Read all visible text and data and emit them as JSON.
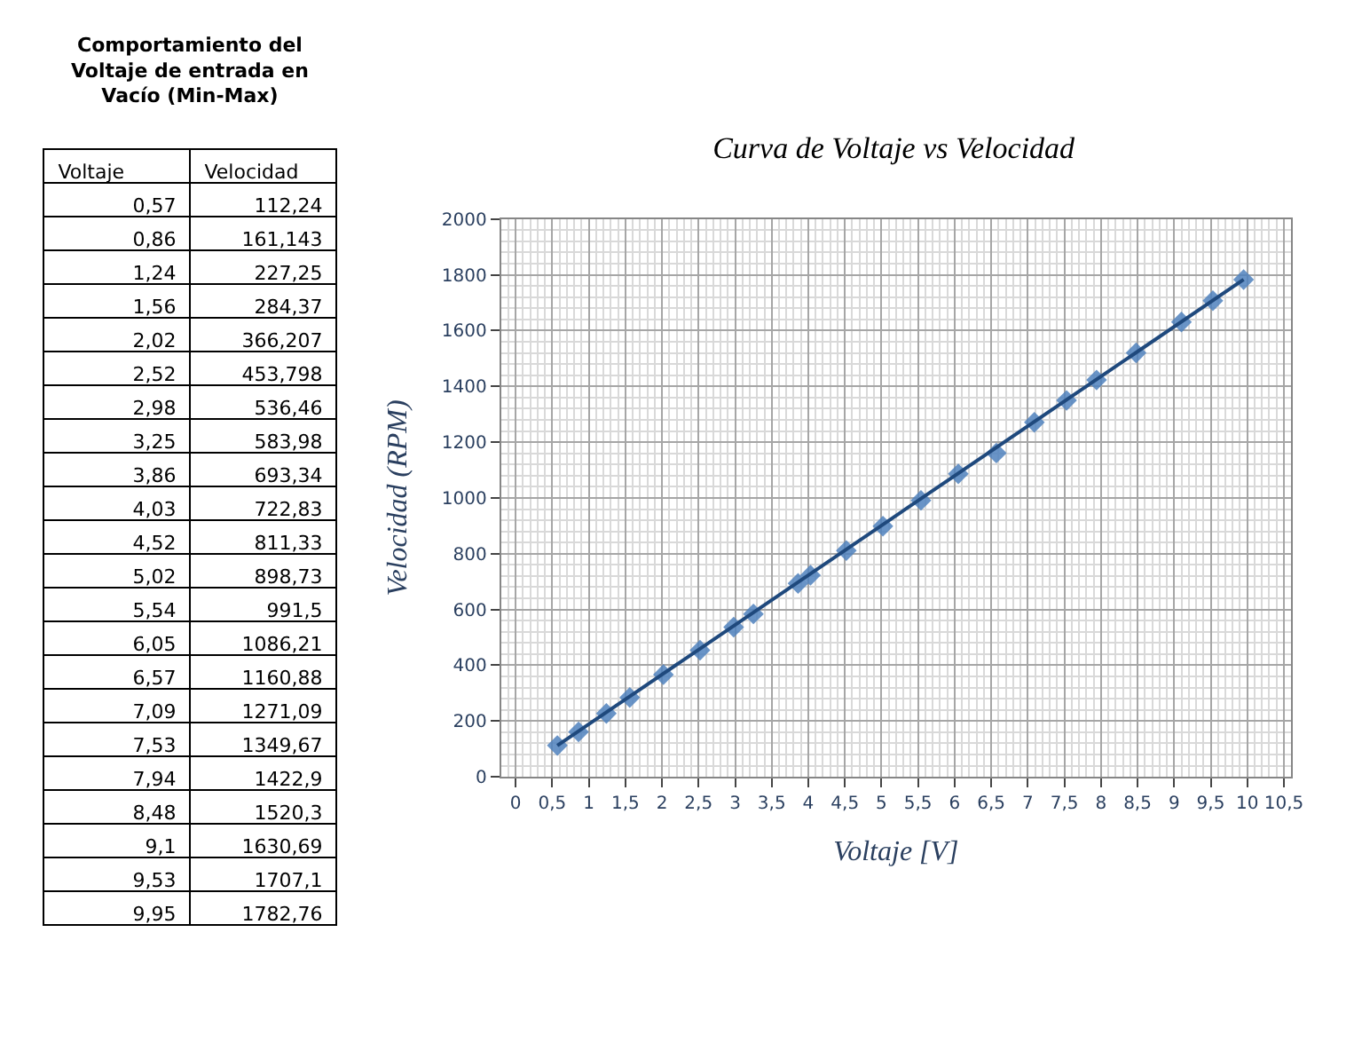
{
  "chart_data": [
    {
      "type": "other",
      "title": "Comportamiento del Voltaje de entrada en Vacío (Min-Max)",
      "annotations": [
        "Voltaje",
        "Velocidad",
        "0,57",
        "112,24",
        "0,86",
        "161,143",
        "1,24",
        "227,25",
        "1,56",
        "284,37",
        "2,02",
        "366,207",
        "2,52",
        "453,798",
        "2,98",
        "536,46",
        "3,25",
        "583,98",
        "3,86",
        "693,34",
        "4,03",
        "722,83",
        "4,52",
        "811,33",
        "5,02",
        "898,73",
        "5,54",
        "991,5",
        "6,05",
        "1086,21",
        "6,57",
        "1160,88",
        "7,09",
        "1271,09",
        "7,53",
        "1349,67",
        "7,94",
        "1422,9",
        "8,48",
        "1520,3",
        "9,1",
        "1630,69",
        "9,53",
        "1707,1",
        "9,95",
        "1782,76"
      ]
    },
    {
      "type": "scatter",
      "title": "Curva de Voltaje vs Velocidad",
      "xlabel": "Voltaje [V]",
      "ylabel": "Velocidad (RPM)",
      "series": [
        {
          "color": "#4f81bd",
          "marker": "diamond",
          "x": [
            0.57,
            0.86,
            1.24,
            1.56,
            2.02,
            2.52,
            2.98,
            3.25,
            3.86,
            4.03,
            4.52,
            5.02,
            5.54,
            6.05,
            6.57,
            7.09,
            7.53,
            7.94,
            8.48,
            9.1,
            9.53,
            9.95
          ],
          "values": [
            112.24,
            161.143,
            227.25,
            284.37,
            366.207,
            453.798,
            536.46,
            583.98,
            693.34,
            722.83,
            811.33,
            898.73,
            991.5,
            1086.21,
            1160.88,
            1271.09,
            1349.67,
            1422.9,
            1520.3,
            1630.69,
            1707.1,
            1782.76
          ]
        },
        {
          "type": "line",
          "color": "#1f497d",
          "x": [
            0.57,
            9.95
          ],
          "values": [
            112,
            1783
          ]
        }
      ],
      "xlim": [
        -0.2,
        10.6
      ],
      "xticks": [
        {
          "value": 0,
          "label": "0"
        },
        {
          "value": 0.5,
          "label": "0,5"
        },
        {
          "value": 1,
          "label": "1"
        },
        {
          "value": 1.5,
          "label": "1,5"
        },
        {
          "value": 2,
          "label": "2"
        },
        {
          "value": 2.5,
          "label": "2,5"
        },
        {
          "value": 3,
          "label": "3"
        },
        {
          "value": 3.5,
          "label": "3,5"
        },
        {
          "value": 4,
          "label": "4"
        },
        {
          "value": 4.5,
          "label": "4,5"
        },
        {
          "value": 5,
          "label": "5"
        },
        {
          "value": 5.5,
          "label": "5,5"
        },
        {
          "value": 6,
          "label": "6"
        },
        {
          "value": 6.5,
          "label": "6,5"
        },
        {
          "value": 7,
          "label": "7"
        },
        {
          "value": 7.5,
          "label": "7,5"
        },
        {
          "value": 8,
          "label": "8"
        },
        {
          "value": 8.5,
          "label": "8,5"
        },
        {
          "value": 9,
          "label": "9"
        },
        {
          "value": 9.5,
          "label": "9,5"
        },
        {
          "value": 10,
          "label": "10"
        },
        {
          "value": 10.5,
          "label": "10,5"
        }
      ],
      "ylim": [
        0,
        2000
      ],
      "yticks": [
        0,
        200,
        400,
        600,
        800,
        1000,
        1200,
        1400,
        1600,
        1800,
        2000
      ],
      "grid": true
    }
  ]
}
